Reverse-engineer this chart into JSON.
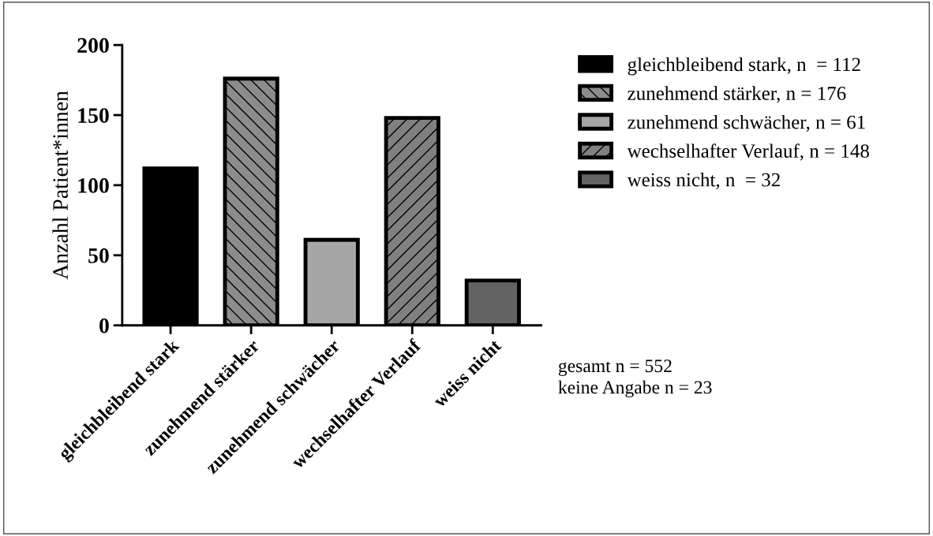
{
  "chart_data": {
    "type": "bar",
    "ylabel": "Anzahl Patient*innen",
    "categories": [
      "gleichbleibend stark",
      "zunehmend stärker",
      "zunehmend schwächer",
      "wechselhafter Verlauf",
      "weiss nicht"
    ],
    "series": [
      {
        "name": "gleichbleibend stark, n  = 112",
        "color": "#000000",
        "values": [
          112,
          null,
          null,
          null,
          null
        ]
      },
      {
        "name": "zunehmend stärker, n = 176",
        "color": "#8c8c8c",
        "values": [
          null,
          176,
          null,
          null,
          null
        ]
      },
      {
        "name": "zunehmend schwächer, n = 61",
        "color": "#a6a6a6",
        "values": [
          null,
          null,
          61,
          null,
          null
        ]
      },
      {
        "name": "wechselhafter Verlauf, n = 148",
        "color": "#808080",
        "values": [
          null,
          null,
          null,
          148,
          null
        ]
      },
      {
        "name": "weiss nicht, n  = 32",
        "color": "#636363",
        "values": [
          null,
          null,
          null,
          null,
          32
        ]
      }
    ],
    "ylim": [
      0,
      200
    ],
    "yticks": [
      0,
      50,
      100,
      150,
      200
    ],
    "grid": false,
    "legend": "right",
    "annotations": [
      "gesamt n = 552",
      "keine Angabe n = 23"
    ]
  }
}
